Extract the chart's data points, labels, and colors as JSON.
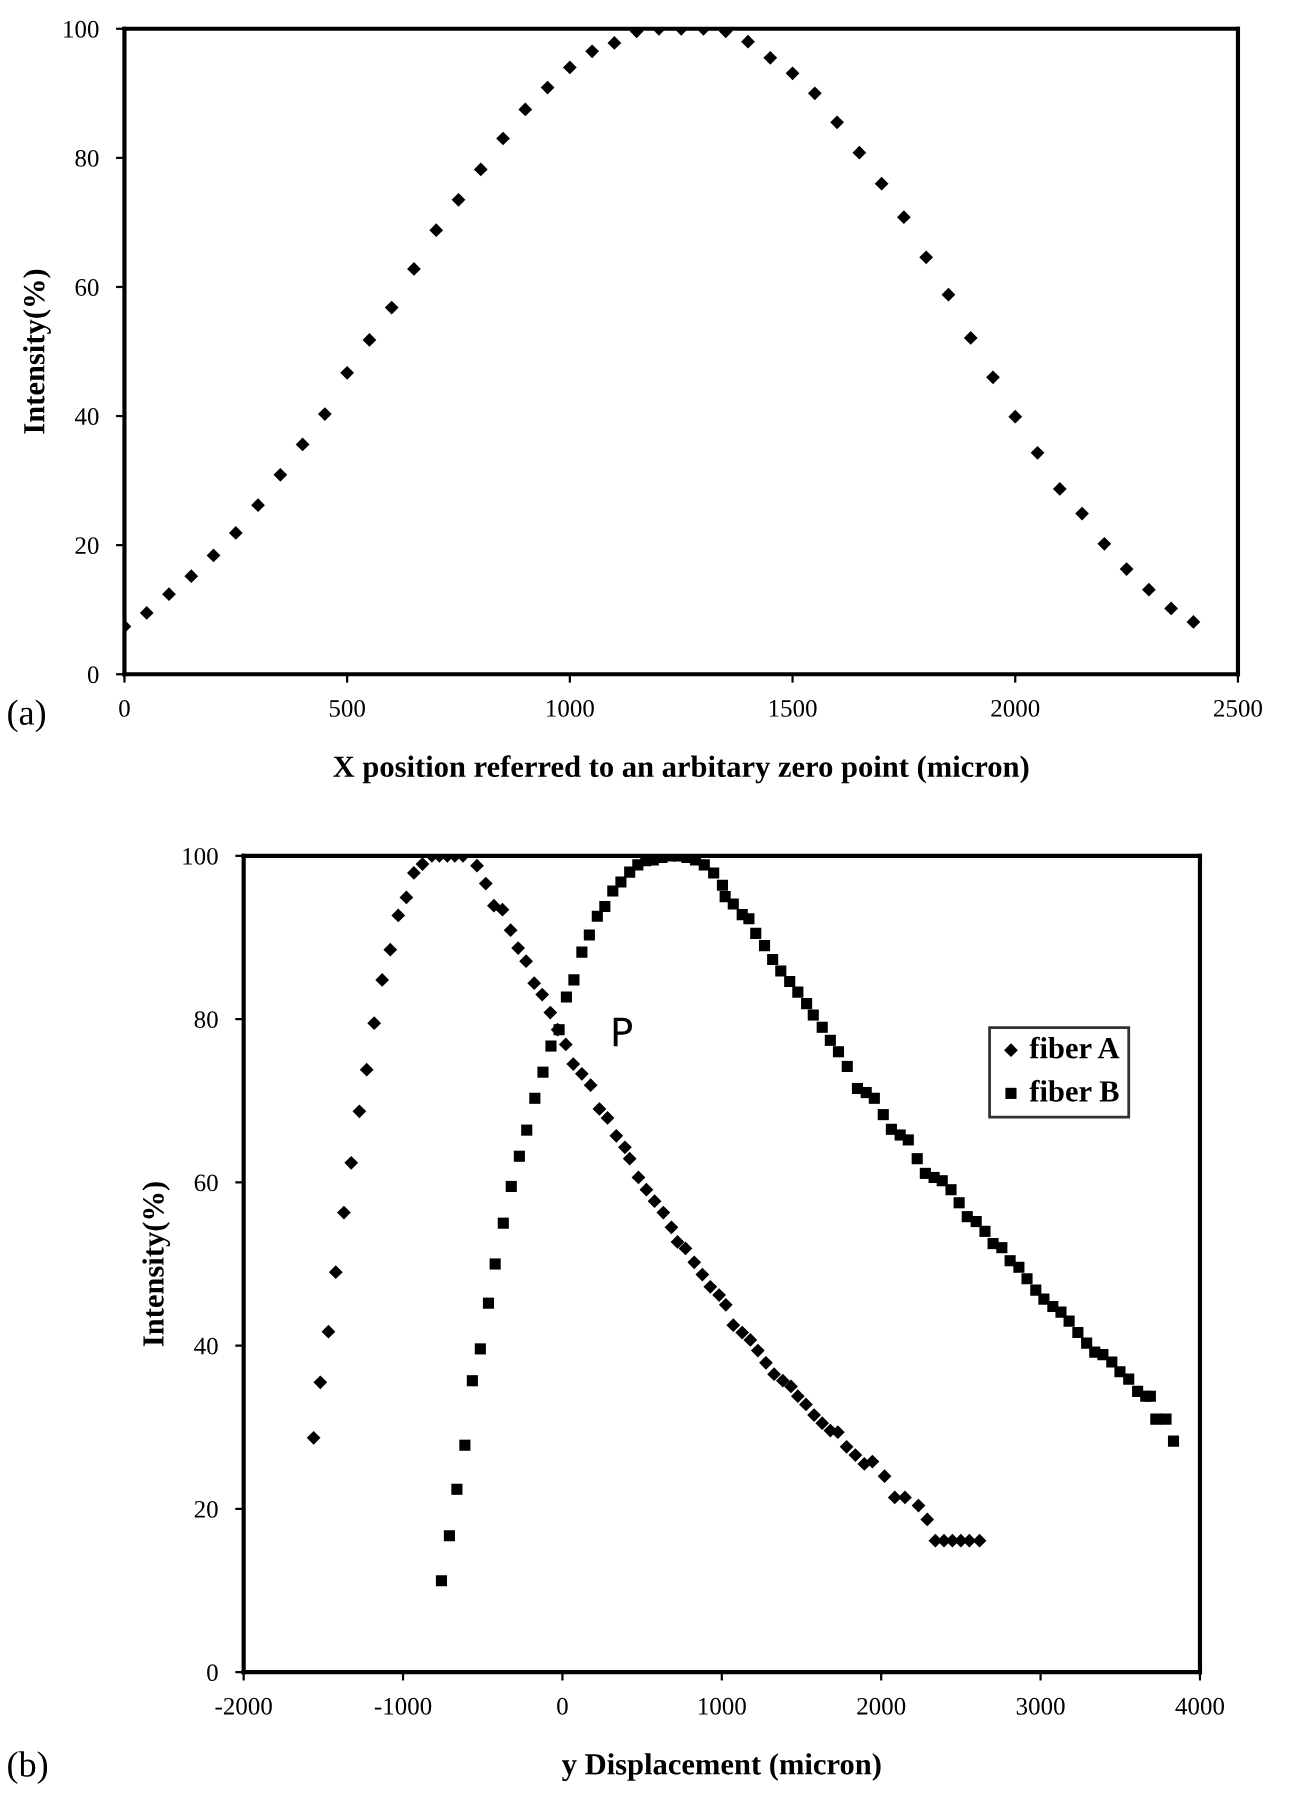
{
  "chart_data": [
    {
      "type": "scatter",
      "xlabel": "X position referred to an arbitary zero point (micron)",
      "ylabel": "Intensity(%)",
      "annotations": [
        "(a)"
      ],
      "marker": "diamond",
      "grid": false,
      "legend": false,
      "xlim": [
        0,
        2500
      ],
      "xticks": [
        0,
        500,
        1000,
        1500,
        2000,
        2500
      ],
      "ylim": [
        0,
        100
      ],
      "yticks": [
        0,
        20,
        40,
        60,
        80,
        100
      ],
      "series": [
        {
          "color": "#000000",
          "x": [
            0,
            50,
            100,
            150,
            200,
            250,
            300,
            350,
            400,
            450,
            500,
            550,
            600,
            650,
            700,
            750,
            800,
            850,
            900,
            950,
            1000,
            1050,
            1100,
            1150,
            1200,
            1250,
            1300,
            1350,
            1400,
            1450,
            1500,
            1550,
            1600,
            1650,
            1700,
            1750,
            1800,
            1850,
            1900,
            1950,
            2000,
            2050,
            2100,
            2150,
            2200,
            2250,
            2300,
            2350,
            2400
          ],
          "values": [
            7.4,
            9.5,
            12.4,
            15.2,
            18.4,
            21.9,
            26.2,
            30.9,
            35.6,
            40.3,
            46.7,
            51.8,
            56.8,
            62.8,
            68.8,
            73.5,
            78.2,
            83.0,
            87.5,
            90.9,
            94.0,
            96.5,
            97.8,
            99.6,
            100,
            100,
            100,
            99.6,
            98.0,
            95.5,
            93.1,
            90.0,
            85.5,
            80.8,
            76.0,
            70.8,
            64.6,
            58.8,
            52.1,
            46.0,
            39.9,
            34.3,
            28.7,
            24.9,
            20.2,
            16.3,
            13.1,
            10.2,
            8.1
          ]
        }
      ]
    },
    {
      "type": "scatter",
      "xlabel": "y Displacement (micron)",
      "ylabel": "Intensity(%)",
      "annotations": [
        "(b)",
        "P"
      ],
      "grid": false,
      "legend": "top right",
      "xlim": [
        -2000,
        4000
      ],
      "xticks": [
        -2000,
        -1000,
        0,
        1000,
        2000,
        3000,
        4000
      ],
      "ylim": [
        0,
        100
      ],
      "yticks": [
        0,
        20,
        40,
        60,
        80,
        100
      ],
      "series": [
        {
          "name": "fiber A",
          "color": "#000000",
          "marker": "diamond",
          "x": [
            -1561,
            -1519,
            -1468,
            -1422,
            -1371,
            -1325,
            -1274,
            -1228,
            -1181,
            -1131,
            -1080,
            -1030,
            -979,
            -932,
            -878,
            -819,
            -772,
            -722,
            -675,
            -624,
            -536,
            -481,
            -430,
            -376,
            -325,
            -278,
            -228,
            -177,
            -127,
            -76,
            -30,
            21,
            68,
            122,
            177,
            232,
            283,
            338,
            392,
            422,
            477,
            527,
            578,
            633,
            684,
            722,
            772,
            827,
            878,
            928,
            983,
            1025,
            1072,
            1128,
            1179,
            1226,
            1277,
            1328,
            1383,
            1434,
            1477,
            1528,
            1579,
            1630,
            1681,
            1728,
            1783,
            1838,
            1894,
            1945,
            2021,
            2085,
            2149,
            2234,
            2289,
            2340,
            2394,
            2447,
            2500,
            2553,
            2617
          ],
          "values": [
            28.7,
            35.5,
            41.7,
            49.0,
            56.3,
            62.4,
            68.7,
            73.8,
            79.5,
            84.8,
            88.5,
            92.7,
            94.9,
            97.9,
            99,
            100,
            100,
            100,
            100,
            100,
            98.8,
            96.6,
            93.9,
            93.4,
            90.9,
            88.7,
            87.1,
            84.4,
            83.0,
            80.8,
            78.7,
            76.9,
            74.5,
            73.3,
            71.9,
            69.0,
            67.9,
            65.7,
            64.3,
            62.9,
            60.6,
            59.1,
            57.7,
            56.3,
            54.5,
            52.7,
            51.9,
            50.2,
            48.7,
            47.2,
            46.2,
            45.0,
            42.5,
            41.6,
            40.7,
            39.4,
            37.9,
            36.5,
            35.7,
            35.0,
            33.8,
            32.8,
            31.5,
            30.5,
            29.6,
            29.4,
            27.6,
            26.6,
            25.5,
            25.8,
            24.0,
            21.4,
            21.4,
            20.4,
            18.7,
            16.1,
            16.1,
            16.1,
            16.1,
            16.1,
            16.1
          ]
        },
        {
          "name": "fiber B",
          "color": "#000000",
          "marker": "square",
          "x": [
            -759,
            -709,
            -662,
            -612,
            -565,
            -515,
            -464,
            -422,
            -371,
            -321,
            -270,
            -224,
            -173,
            -122,
            -72,
            -21,
            25,
            72,
            122,
            169,
            219,
            266,
            316,
            367,
            422,
            473,
            523,
            570,
            624,
            675,
            730,
            781,
            835,
            890,
            949,
            1004,
            1021,
            1072,
            1128,
            1170,
            1213,
            1268,
            1319,
            1370,
            1426,
            1477,
            1532,
            1574,
            1630,
            1681,
            1732,
            1787,
            1851,
            1906,
            1957,
            2013,
            2064,
            2119,
            2170,
            2226,
            2277,
            2332,
            2383,
            2438,
            2489,
            2540,
            2596,
            2651,
            2702,
            2757,
            2809,
            2864,
            2915,
            2970,
            3021,
            3077,
            3128,
            3179,
            3234,
            3289,
            3340,
            3391,
            3447,
            3498,
            3553,
            3609,
            3660,
            3689,
            3723,
            3787,
            3834
          ],
          "values": [
            11.2,
            16.7,
            22.4,
            27.8,
            35.7,
            39.6,
            45.2,
            50.0,
            55.0,
            59.5,
            63.2,
            66.4,
            70.3,
            73.5,
            76.7,
            78.7,
            82.7,
            84.8,
            88.2,
            90.3,
            92.6,
            93.8,
            95.7,
            96.8,
            98.0,
            98.9,
            99.4,
            99.5,
            99.8,
            100,
            100,
            99.8,
            99.5,
            98.9,
            97.9,
            96.4,
            95.0,
            94.1,
            92.8,
            92.3,
            90.5,
            89.0,
            87.3,
            85.9,
            84.6,
            83.3,
            81.9,
            80.5,
            79.0,
            77.4,
            76.0,
            74.2,
            71.5,
            71.0,
            70.3,
            68.3,
            66.5,
            65.8,
            65.2,
            62.9,
            61.1,
            60.6,
            60.2,
            59.1,
            57.5,
            55.8,
            55.2,
            54.0,
            52.5,
            52.0,
            50.4,
            49.6,
            48.2,
            46.8,
            45.7,
            44.8,
            44.1,
            43.0,
            41.6,
            40.3,
            39.2,
            38.9,
            38.0,
            36.8,
            35.9,
            34.4,
            33.8,
            33.8,
            31.0,
            31.0,
            28.3
          ]
        }
      ]
    }
  ]
}
